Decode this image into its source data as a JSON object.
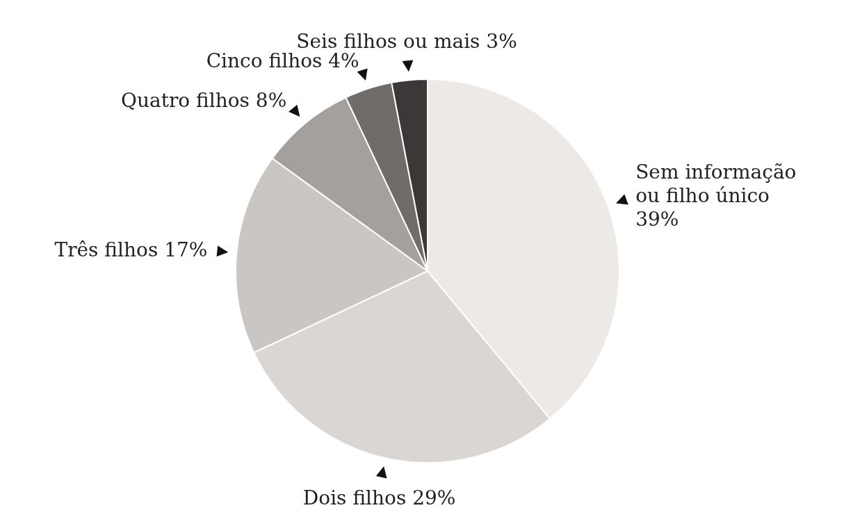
{
  "chart_data": {
    "type": "pie",
    "categories": [
      "Sem informação ou filho único",
      "Dois filhos",
      "Três filhos",
      "Quatro filhos",
      "Cinco filhos",
      "Seis filhos ou mais"
    ],
    "values": [
      39,
      29,
      17,
      8,
      4,
      3
    ],
    "value_labels": [
      "39%",
      "29%",
      "17%",
      "8%",
      "4%",
      "3%"
    ],
    "colors": [
      "#ece9e7",
      "#d9d6d4",
      "#c9c6c4",
      "#a3a09e",
      "#6f6c6a",
      "#3b3837"
    ]
  }
}
